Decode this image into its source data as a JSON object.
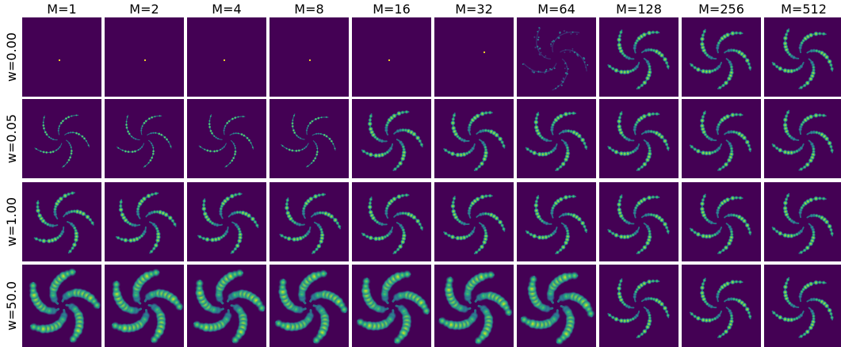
{
  "chart_data": {
    "type": "heatmap",
    "title": "",
    "column_labels": [
      "M=1",
      "M=2",
      "M=4",
      "M=8",
      "M=16",
      "M=32",
      "M=64",
      "M=128",
      "M=256",
      "M=512"
    ],
    "row_labels": [
      "w=0.00",
      "w=0.05",
      "w=1.00",
      "w=50.0"
    ],
    "colormap": "viridis",
    "background_color": "#440154",
    "arms": 5,
    "grid": false,
    "ticks": false,
    "panels": [
      [
        "point",
        "point",
        "point",
        "point",
        "point",
        "point",
        "noisy-spiral",
        "spiral",
        "spiral",
        "spiral"
      ],
      [
        "thin-spiral",
        "thin-spiral",
        "thin-spiral",
        "thin-spiral",
        "spiral",
        "spiral",
        "spiral",
        "spiral",
        "spiral",
        "spiral"
      ],
      [
        "spiral",
        "spiral",
        "spiral",
        "spiral",
        "spiral",
        "spiral",
        "spiral",
        "spiral",
        "spiral",
        "spiral"
      ],
      [
        "wide-spiral",
        "wide-spiral",
        "wide-spiral",
        "wide-spiral",
        "wide-spiral",
        "wide-spiral",
        "wide-spiral",
        "spiral",
        "spiral",
        "spiral"
      ]
    ]
  }
}
